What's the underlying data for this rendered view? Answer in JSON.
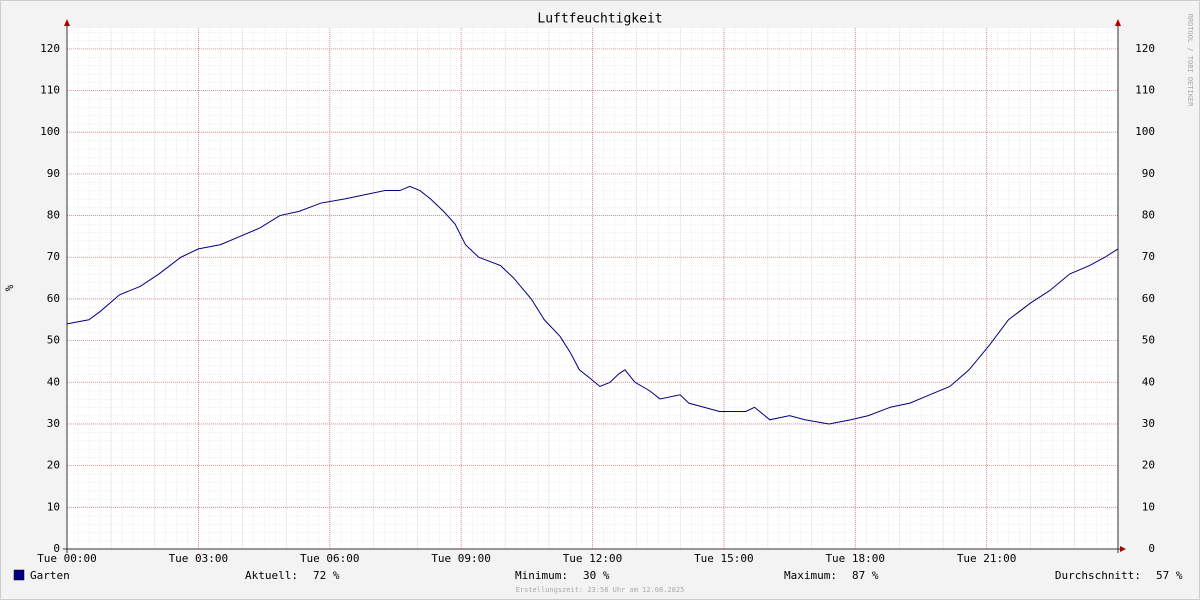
{
  "chart_data": {
    "type": "line",
    "title": "Luftfeuchtigkeit",
    "ylabel": "%",
    "watermark": "RRDTOOL / TOBI OETIKER",
    "footer": "Erstellungszeit: 23:58 Uhr am 12.08.2025",
    "xlim": [
      0,
      24
    ],
    "xticks": [
      {
        "value": 0,
        "label": "Tue 00:00"
      },
      {
        "value": 3,
        "label": "Tue 03:00"
      },
      {
        "value": 6,
        "label": "Tue 06:00"
      },
      {
        "value": 9,
        "label": "Tue 09:00"
      },
      {
        "value": 12,
        "label": "Tue 12:00"
      },
      {
        "value": 15,
        "label": "Tue 15:00"
      },
      {
        "value": 18,
        "label": "Tue 18:00"
      },
      {
        "value": 21,
        "label": "Tue 21:00"
      }
    ],
    "ylim": [
      0,
      125
    ],
    "yticks": [
      0,
      10,
      20,
      30,
      40,
      50,
      60,
      70,
      80,
      90,
      100,
      110,
      120
    ],
    "grid": true,
    "x": [
      0,
      0.5,
      0.76,
      1.2,
      1.67,
      2.1,
      2.6,
      3,
      3.5,
      3.95,
      4.4,
      4.86,
      5.3,
      5.8,
      6.35,
      7.26,
      7.6,
      7.83,
      8.06,
      8.3,
      8.6,
      8.86,
      9.1,
      9.4,
      9.9,
      10.2,
      10.6,
      10.9,
      11.26,
      11.5,
      11.7,
      11.94,
      12.17,
      12.4,
      12.6,
      12.74,
      12.97,
      13.3,
      13.54,
      14,
      14.2,
      14.9,
      15.5,
      15.7,
      16.05,
      16.5,
      16.85,
      17.4,
      17.9,
      18.3,
      18.8,
      19.25,
      19.7,
      20.16,
      20.6,
      21.07,
      21.5,
      22,
      22.44,
      22.9,
      23.35,
      23.7,
      24
    ],
    "series": [
      {
        "name": "Garten",
        "color": "#000080",
        "values": [
          54,
          55,
          57,
          61,
          63,
          66,
          70,
          72,
          73,
          75,
          77,
          80,
          81,
          83,
          84,
          86,
          86,
          87,
          86,
          84,
          81,
          78,
          73,
          70,
          68,
          65,
          60,
          55,
          51,
          47,
          43,
          41,
          39,
          40,
          42,
          43,
          40,
          38,
          36,
          37,
          35,
          33,
          33,
          34,
          31,
          32,
          31,
          30,
          31,
          32,
          34,
          35,
          37,
          39,
          43,
          49,
          55,
          59,
          62,
          66,
          68,
          70,
          72
        ]
      }
    ],
    "stats": [
      {
        "label": "Aktuell:",
        "text": "72 %"
      },
      {
        "label": "Minimum:",
        "text": "30 %"
      },
      {
        "label": "Maximum:",
        "text": "87 %"
      },
      {
        "label": "Durchschnitt:",
        "text": "57 %"
      }
    ]
  }
}
